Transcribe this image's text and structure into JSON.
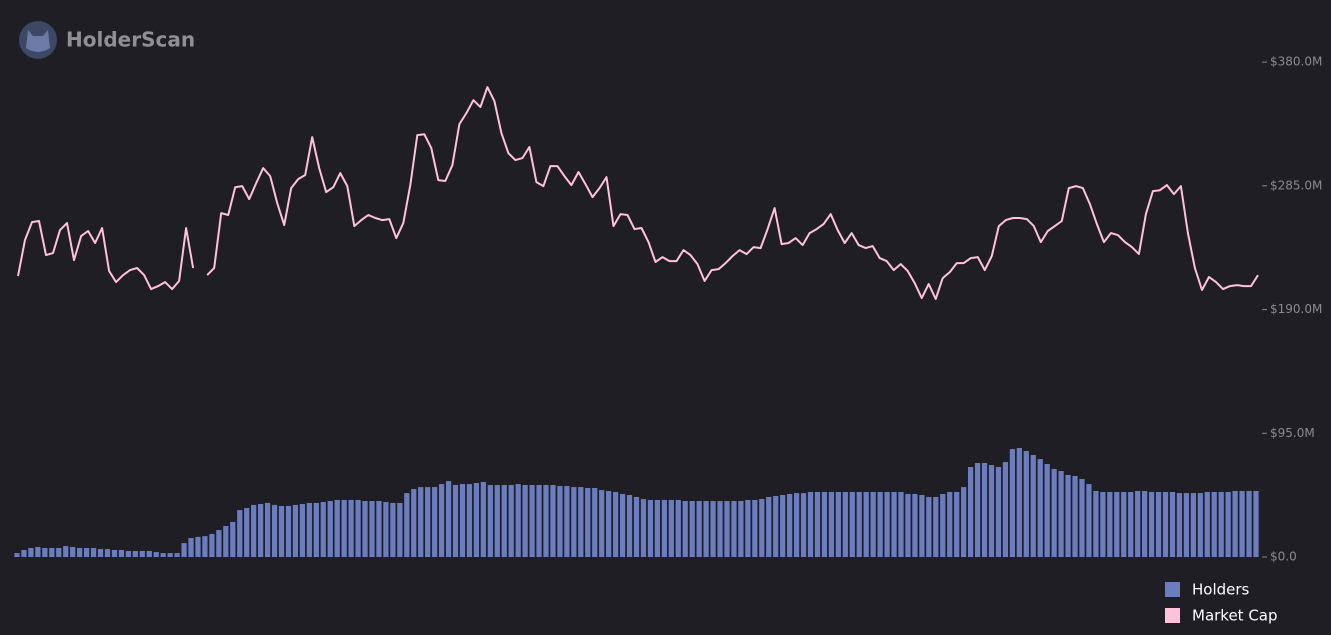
{
  "brand": "HolderScan",
  "chart_data": {
    "type": "combo",
    "ylim": [
      0,
      397
    ],
    "yticks": [
      {
        "value": 0,
        "label": "$0.0"
      },
      {
        "value": 95,
        "label": "$95.0M"
      },
      {
        "value": 190,
        "label": "$190.0M"
      },
      {
        "value": 285,
        "label": "$285.0M"
      },
      {
        "value": 380,
        "label": "$380.0M"
      }
    ],
    "legend": "bottom-right",
    "series": [
      {
        "name": "Holders",
        "type": "bar",
        "color": "#6b7dbf",
        "values": [
          3,
          5.4,
          6.9,
          7.7,
          6.9,
          6.9,
          6.9,
          8.4,
          7.7,
          6.9,
          6.9,
          6.9,
          6.1,
          6.1,
          5.4,
          5.4,
          4.6,
          4.6,
          4.6,
          4.6,
          3.8,
          3,
          3,
          3,
          10.7,
          14.6,
          15.4,
          16,
          17.7,
          20.7,
          23.8,
          26.9,
          36,
          37.6,
          40,
          40.7,
          41.5,
          40,
          39.2,
          39.2,
          40,
          40.7,
          41.5,
          41.5,
          42.2,
          43,
          43.8,
          43.8,
          43.8,
          43.8,
          43,
          43,
          43,
          42.2,
          41.5,
          41.5,
          49.1,
          52.2,
          53.7,
          53.7,
          53.7,
          56,
          58.3,
          55.3,
          56,
          56,
          56.8,
          57.6,
          55.3,
          55.3,
          55.3,
          55.3,
          56,
          55.3,
          55.3,
          55.3,
          55.3,
          55.3,
          54.5,
          54.5,
          53.7,
          53.7,
          53,
          53,
          51.4,
          50.7,
          49.9,
          48.4,
          47.6,
          46.1,
          44.5,
          43.8,
          43.8,
          43.8,
          43.8,
          43.8,
          43,
          43,
          43,
          43,
          43,
          43,
          43,
          43,
          43,
          43.8,
          43.8,
          44.5,
          46.1,
          46.8,
          47.6,
          48.4,
          49.1,
          49.1,
          49.9,
          49.9,
          49.9,
          49.9,
          49.9,
          49.9,
          49.9,
          49.9,
          49.9,
          49.9,
          49.9,
          49.9,
          49.9,
          49.9,
          48.4,
          48.4,
          47.6,
          46.1,
          46.1,
          48.4,
          49.9,
          49.9,
          53.7,
          69.1,
          72.2,
          72.2,
          70.6,
          69.1,
          72.9,
          82.9,
          83.7,
          81.4,
          78.3,
          75.2,
          71.4,
          67.6,
          66,
          63,
          62.2,
          59.9,
          56,
          50.7,
          49.9,
          49.9,
          49.9,
          49.9,
          49.9,
          50.7,
          50.7,
          49.9,
          49.9,
          49.9,
          49.9,
          49.1,
          49.1,
          49.1,
          49.1,
          49.9,
          49.9,
          49.9,
          49.9,
          50.7,
          50.7,
          50.7,
          50.7
        ]
      },
      {
        "name": "Market Cap",
        "type": "line",
        "color": "#ffc2d8",
        "values": [
          215.7,
          243.4,
          257.2,
          258,
          231.8,
          233.4,
          251,
          256.4,
          228,
          246.4,
          250.3,
          241.1,
          252.6,
          219.6,
          211.1,
          216.5,
          220.3,
          221.9,
          216.5,
          205.7,
          208,
          211.1,
          205.7,
          211.9,
          252.6,
          221.9,
          null,
          216.5,
          221.9,
          264.1,
          262.6,
          284,
          284.8,
          274.8,
          287.1,
          298.6,
          292.5,
          271.8,
          254.9,
          283.3,
          290.2,
          293.3,
          322.4,
          298.6,
          280.2,
          284,
          294.8,
          284.8,
          254.1,
          258.7,
          262.6,
          260.3,
          258.7,
          259.5,
          244.9,
          256.4,
          285.6,
          324,
          324.7,
          314,
          289.4,
          288.7,
          300.9,
          332.4,
          340.9,
          350.8,
          345.5,
          360.8,
          350.1,
          325.5,
          310.1,
          304.8,
          306.3,
          314.8,
          287.9,
          284.8,
          300.2,
          300.2,
          292.5,
          285.6,
          295.6,
          286.3,
          276.4,
          283.3,
          291.7,
          254.1,
          263.3,
          262.6,
          251.8,
          252.6,
          241.8,
          226.5,
          230.3,
          227.2,
          227.2,
          235.7,
          231.8,
          224.9,
          211.9,
          220.3,
          221.1,
          225.7,
          231.1,
          235.7,
          232.6,
          238,
          237.2,
          251.8,
          267.9,
          240.3,
          241.1,
          244.9,
          239.5,
          248.7,
          251.8,
          255.6,
          263.3,
          251,
          241.1,
          248.7,
          239.5,
          237.2,
          238.7,
          229.5,
          227.2,
          220.3,
          224.9,
          219.6,
          210.3,
          198.8,
          209.6,
          198.1,
          214.2,
          218.8,
          225.7,
          225.7,
          229.5,
          230.3,
          220.3,
          231.1,
          254.1,
          258.7,
          260.3,
          260.3,
          259.5,
          254.1,
          241.8,
          250.3,
          254.1,
          258,
          283.3,
          284.8,
          283.3,
          271,
          255.6,
          241.8,
          248.7,
          247.2,
          241.8,
          238,
          232.6,
          263.3,
          281,
          281.7,
          285.6,
          278.7,
          284.8,
          248.7,
          221.9,
          205,
          215,
          211.1,
          205.7,
          208,
          208.8,
          208,
          208,
          216.5
        ]
      }
    ]
  }
}
